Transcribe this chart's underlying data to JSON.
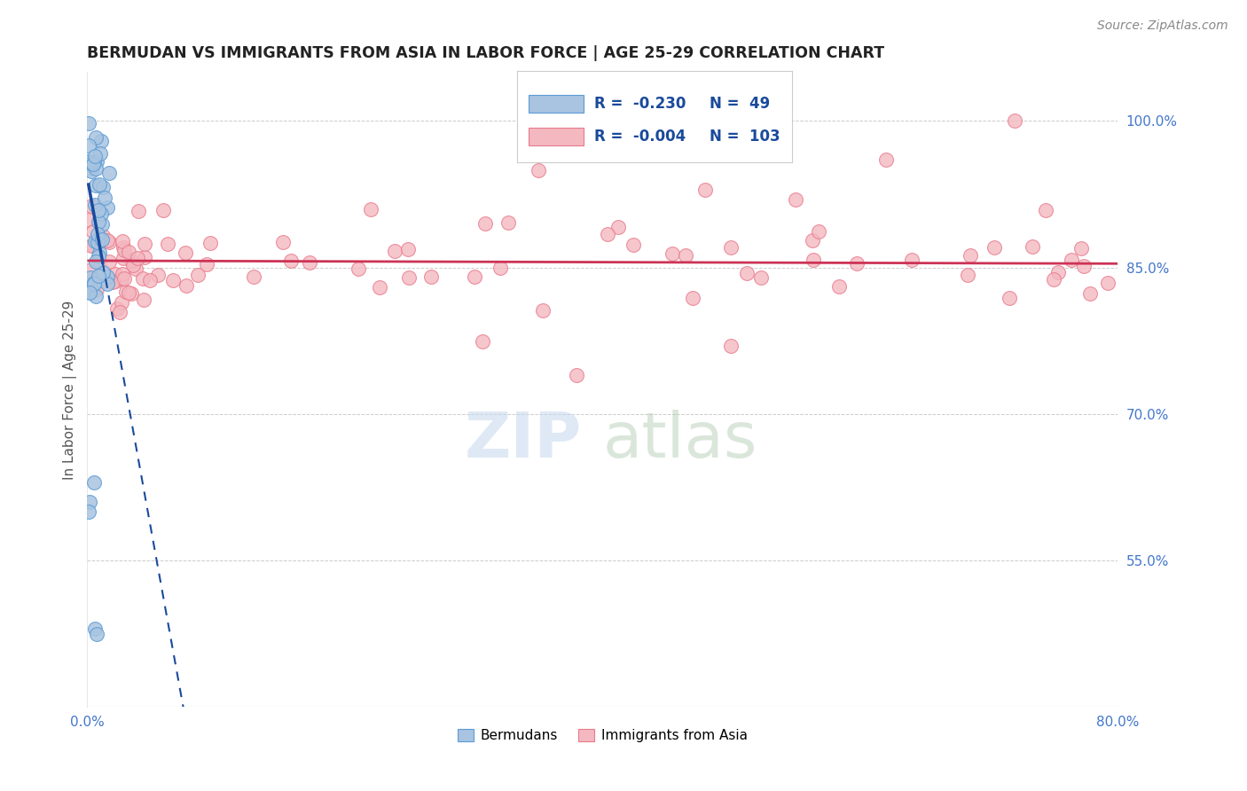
{
  "title": "BERMUDAN VS IMMIGRANTS FROM ASIA IN LABOR FORCE | AGE 25-29 CORRELATION CHART",
  "source_text": "Source: ZipAtlas.com",
  "ylabel": "In Labor Force | Age 25-29",
  "right_ytick_labels": [
    "55.0%",
    "70.0%",
    "85.0%",
    "100.0%"
  ],
  "right_ytick_values": [
    0.55,
    0.7,
    0.85,
    1.0
  ],
  "xlim": [
    0.0,
    0.8
  ],
  "ylim": [
    0.4,
    1.05
  ],
  "xticklabels_edge": [
    "0.0%",
    "80.0%"
  ],
  "xtick_values_edge": [
    0.0,
    0.8
  ],
  "grid_color": "#cccccc",
  "background_color": "#ffffff",
  "watermark_text1": "ZIP",
  "watermark_text2": "atlas",
  "legend_R_blue": "-0.230",
  "legend_N_blue": "49",
  "legend_R_pink": "-0.004",
  "legend_N_pink": "103",
  "blue_color": "#a8c4e0",
  "blue_edge_color": "#5b9bd5",
  "pink_color": "#f4b8c1",
  "pink_edge_color": "#e87a8a",
  "trend_blue_color": "#1a4a9c",
  "trend_pink_color": "#cc3355",
  "legend_text_color": "#1a4a9c",
  "title_color": "#222222",
  "source_color": "#888888",
  "ylabel_color": "#555555",
  "right_tick_color": "#4477cc"
}
